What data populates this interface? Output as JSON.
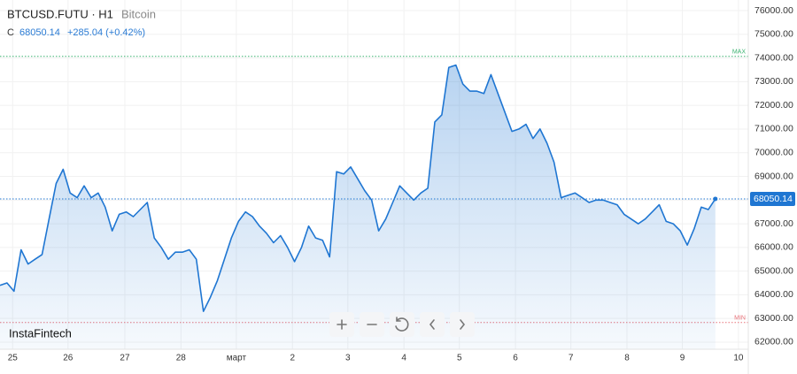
{
  "chart_data": {
    "type": "area",
    "title": "BTCUSD.FUTU · H1",
    "subtitle": "Bitcoin",
    "close_label": "C",
    "last_price": 68050.14,
    "change": "+285.04 (+0.42%)",
    "watermark": "InstaFintech",
    "color": "#1f76d2",
    "values": [
      64400,
      64500,
      64150,
      65900,
      65300,
      65500,
      65700,
      67200,
      68700,
      69300,
      68300,
      68100,
      68600,
      68100,
      68300,
      67700,
      66700,
      67400,
      67500,
      67300,
      67600,
      67900,
      66400,
      66000,
      65500,
      65800,
      65800,
      65900,
      65500,
      63300,
      63900,
      64600,
      65500,
      66400,
      67100,
      67500,
      67300,
      66900,
      66600,
      66200,
      66500,
      66000,
      65400,
      66000,
      66900,
      66400,
      66300,
      65600,
      69200,
      69100,
      69400,
      68900,
      68400,
      68000,
      66700,
      67200,
      67900,
      68600,
      68300,
      68000,
      68300,
      68500,
      71300,
      71600,
      73600,
      73700,
      72900,
      72600,
      72600,
      72500,
      73300,
      72500,
      71700,
      70900,
      71000,
      71200,
      70600,
      71000,
      70400,
      69600,
      68100,
      68200,
      68300,
      68100,
      67900,
      68000,
      68000,
      67900,
      67800,
      67400,
      67200,
      67000,
      67200,
      67500,
      67800,
      67100,
      67000,
      66700,
      66100,
      66800,
      67700,
      67600,
      68050.14
    ],
    "xlim": [
      0,
      106.7
    ],
    "xticks": [
      {
        "value": 1.8,
        "label": "25"
      },
      {
        "value": 9.7,
        "label": "26"
      },
      {
        "value": 17.8,
        "label": "27"
      },
      {
        "value": 25.8,
        "label": "28"
      },
      {
        "value": 33.7,
        "label": "март"
      },
      {
        "value": 41.7,
        "label": "2"
      },
      {
        "value": 49.6,
        "label": "3"
      },
      {
        "value": 57.6,
        "label": "4"
      },
      {
        "value": 65.5,
        "label": "5"
      },
      {
        "value": 73.5,
        "label": "6"
      },
      {
        "value": 81.4,
        "label": "7"
      },
      {
        "value": 89.4,
        "label": "8"
      },
      {
        "value": 97.3,
        "label": "9"
      },
      {
        "value": 105.3,
        "label": "10"
      }
    ],
    "ylim": [
      61700,
      76450
    ],
    "yticks": [
      {
        "value": 62000,
        "label": "62000.00"
      },
      {
        "value": 63000,
        "label": "63000.00"
      },
      {
        "value": 64000,
        "label": "64000.00"
      },
      {
        "value": 65000,
        "label": "65000.00"
      },
      {
        "value": 66000,
        "label": "66000.00"
      },
      {
        "value": 67000,
        "label": "67000.00"
      },
      {
        "value": 68000,
        "label": "68000.00"
      },
      {
        "value": 69000,
        "label": "69000.00"
      },
      {
        "value": 70000,
        "label": "70000.00"
      },
      {
        "value": 71000,
        "label": "71000.00"
      },
      {
        "value": 72000,
        "label": "72000.00"
      },
      {
        "value": 73000,
        "label": "73000.00"
      },
      {
        "value": 74000,
        "label": "74000.00"
      },
      {
        "value": 75000,
        "label": "75000.00"
      },
      {
        "value": 76000,
        "label": "76000.00"
      }
    ],
    "max_line": {
      "value": 74070,
      "label": "MAX",
      "color": "#3cb371"
    },
    "min_line": {
      "value": 62830,
      "label": "MIN",
      "color": "#e8737a"
    },
    "grid": true
  }
}
